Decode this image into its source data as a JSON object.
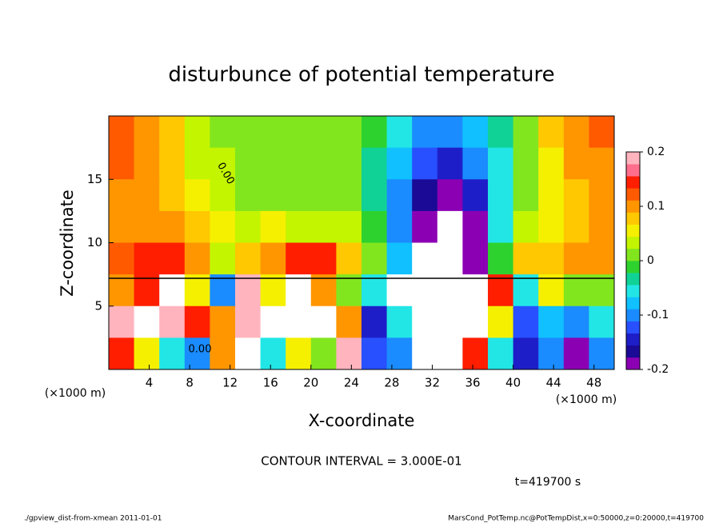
{
  "chart_data": {
    "type": "heatmap",
    "title": "disturbunce of potential temperature",
    "xlabel": "X-coordinate",
    "ylabel": "Z-coordinate",
    "x_unit_left": "(×1000 m)",
    "x_unit_right": "(×1000 m)",
    "contour_note": "CONTOUR INTERVAL = 3.000E-01",
    "time_note": "t=419700 s",
    "footer_left": "./gpview_dist-from-xmean  2011-01-01",
    "footer_right": "MarsCond_PotTemp.nc@PotTempDist,x=0:50000,z=0:20000,t=419700",
    "contour_labels": [
      "0.00",
      "0.00"
    ],
    "xlim": [
      0,
      50
    ],
    "ylim": [
      0,
      20
    ],
    "xticks": [
      4,
      8,
      12,
      16,
      20,
      24,
      28,
      32,
      36,
      40,
      44,
      48
    ],
    "yticks": [
      5,
      10,
      15
    ],
    "clim": [
      -0.2,
      0.2
    ],
    "cticks": [
      -0.2,
      -0.1,
      0,
      0.1,
      0.2
    ],
    "colors": [
      "#8c00b4",
      "#1a0a96",
      "#1e1ec8",
      "#2850ff",
      "#1a8cff",
      "#10c0ff",
      "#22e6e6",
      "#10d296",
      "#2ed22e",
      "#82e61e",
      "#c3f500",
      "#f5f000",
      "#ffc800",
      "#ff9600",
      "#ff5a00",
      "#ff1e00",
      "#ff6e8c",
      "#ffb4be"
    ],
    "z": [
      [
        0.13,
        0.1,
        0.07,
        0.04,
        0.02,
        0.0,
        0.0,
        0.0,
        0.0,
        0.0,
        -0.02,
        -0.06,
        -0.1,
        -0.1,
        -0.08,
        -0.04,
        0.02,
        0.07,
        0.1,
        0.12
      ],
      [
        0.12,
        0.1,
        0.07,
        0.04,
        0.03,
        0.01,
        0.0,
        0.0,
        0.0,
        0.0,
        -0.03,
        -0.08,
        -0.13,
        -0.14,
        -0.11,
        -0.05,
        0.02,
        0.06,
        0.09,
        0.11
      ],
      [
        0.11,
        0.1,
        0.08,
        0.06,
        0.04,
        0.02,
        0.02,
        0.01,
        0.0,
        0.01,
        -0.03,
        -0.1,
        -0.17,
        -0.18,
        -0.14,
        -0.06,
        0.02,
        0.05,
        0.08,
        0.1
      ],
      [
        0.11,
        0.1,
        0.09,
        0.07,
        0.05,
        0.04,
        0.05,
        0.04,
        0.03,
        0.03,
        -0.02,
        -0.1,
        -0.2,
        -0.3,
        -0.19,
        -0.06,
        0.03,
        0.05,
        0.07,
        0.09
      ],
      [
        0.12,
        0.14,
        0.15,
        0.1,
        0.03,
        0.08,
        0.1,
        0.14,
        0.14,
        0.08,
        0.0,
        -0.08,
        -0.22,
        -0.3,
        -0.2,
        -0.02,
        0.07,
        0.08,
        0.09,
        0.1
      ],
      [
        0.1,
        0.15,
        0.3,
        0.05,
        -0.1,
        0.2,
        0.05,
        0.25,
        0.1,
        0.02,
        -0.05,
        0.25,
        0.3,
        0.3,
        0.25,
        0.15,
        -0.05,
        0.05,
        0.02,
        0.0
      ],
      [
        0.2,
        0.25,
        0.18,
        0.15,
        0.1,
        0.2,
        0.25,
        0.3,
        0.28,
        0.1,
        -0.15,
        -0.05,
        0.3,
        0.35,
        0.3,
        0.05,
        -0.12,
        -0.08,
        -0.1,
        -0.05
      ],
      [
        0.15,
        0.05,
        -0.05,
        -0.1,
        0.1,
        0.3,
        -0.05,
        0.05,
        0.0,
        0.2,
        -0.12,
        -0.1,
        0.3,
        0.3,
        0.15,
        -0.05,
        -0.15,
        -0.1,
        -0.2,
        -0.1
      ]
    ]
  }
}
